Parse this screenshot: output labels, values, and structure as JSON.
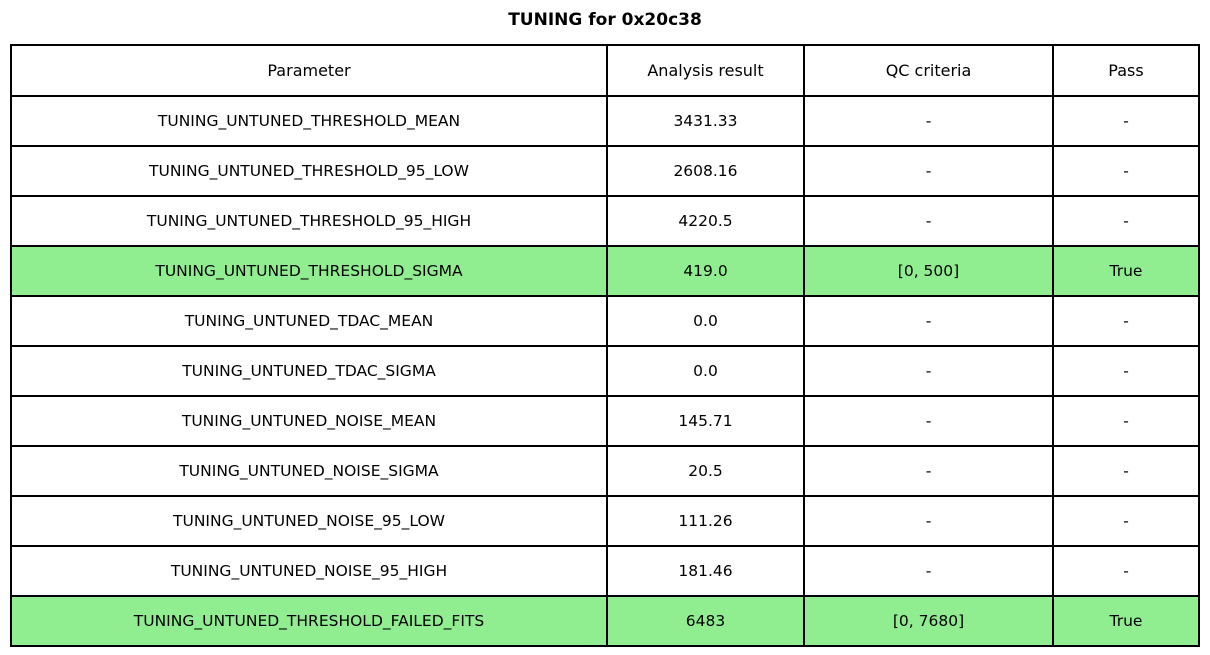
{
  "title": "TUNING for 0x20c38",
  "colors": {
    "highlight_green": "#90EE90",
    "border": "#000000",
    "background": "#FFFFFF",
    "text": "#000000"
  },
  "chart_data": {
    "type": "table",
    "title": "TUNING for 0x20c38",
    "columns": [
      "Parameter",
      "Analysis result",
      "QC criteria",
      "Pass"
    ],
    "rows": [
      {
        "parameter": "TUNING_UNTUNED_THRESHOLD_MEAN",
        "analysis_result": "3431.33",
        "qc_criteria": "-",
        "pass": "-",
        "highlighted": false
      },
      {
        "parameter": "TUNING_UNTUNED_THRESHOLD_95_LOW",
        "analysis_result": "2608.16",
        "qc_criteria": "-",
        "pass": "-",
        "highlighted": false
      },
      {
        "parameter": "TUNING_UNTUNED_THRESHOLD_95_HIGH",
        "analysis_result": "4220.5",
        "qc_criteria": "-",
        "pass": "-",
        "highlighted": false
      },
      {
        "parameter": "TUNING_UNTUNED_THRESHOLD_SIGMA",
        "analysis_result": "419.0",
        "qc_criteria": "[0, 500]",
        "pass": "True",
        "highlighted": true
      },
      {
        "parameter": "TUNING_UNTUNED_TDAC_MEAN",
        "analysis_result": "0.0",
        "qc_criteria": "-",
        "pass": "-",
        "highlighted": false
      },
      {
        "parameter": "TUNING_UNTUNED_TDAC_SIGMA",
        "analysis_result": "0.0",
        "qc_criteria": "-",
        "pass": "-",
        "highlighted": false
      },
      {
        "parameter": "TUNING_UNTUNED_NOISE_MEAN",
        "analysis_result": "145.71",
        "qc_criteria": "-",
        "pass": "-",
        "highlighted": false
      },
      {
        "parameter": "TUNING_UNTUNED_NOISE_SIGMA",
        "analysis_result": "20.5",
        "qc_criteria": "-",
        "pass": "-",
        "highlighted": false
      },
      {
        "parameter": "TUNING_UNTUNED_NOISE_95_LOW",
        "analysis_result": "111.26",
        "qc_criteria": "-",
        "pass": "-",
        "highlighted": false
      },
      {
        "parameter": "TUNING_UNTUNED_NOISE_95_HIGH",
        "analysis_result": "181.46",
        "qc_criteria": "-",
        "pass": "-",
        "highlighted": false
      },
      {
        "parameter": "TUNING_UNTUNED_THRESHOLD_FAILED_FITS",
        "analysis_result": "6483",
        "qc_criteria": "[0, 7680]",
        "pass": "True",
        "highlighted": true
      }
    ],
    "highlighted_rows": [
      "TUNING_UNTUNED_THRESHOLD_SIGMA",
      "TUNING_UNTUNED_THRESHOLD_FAILED_FITS"
    ],
    "layout": {
      "grid": true,
      "legend": "none"
    }
  }
}
